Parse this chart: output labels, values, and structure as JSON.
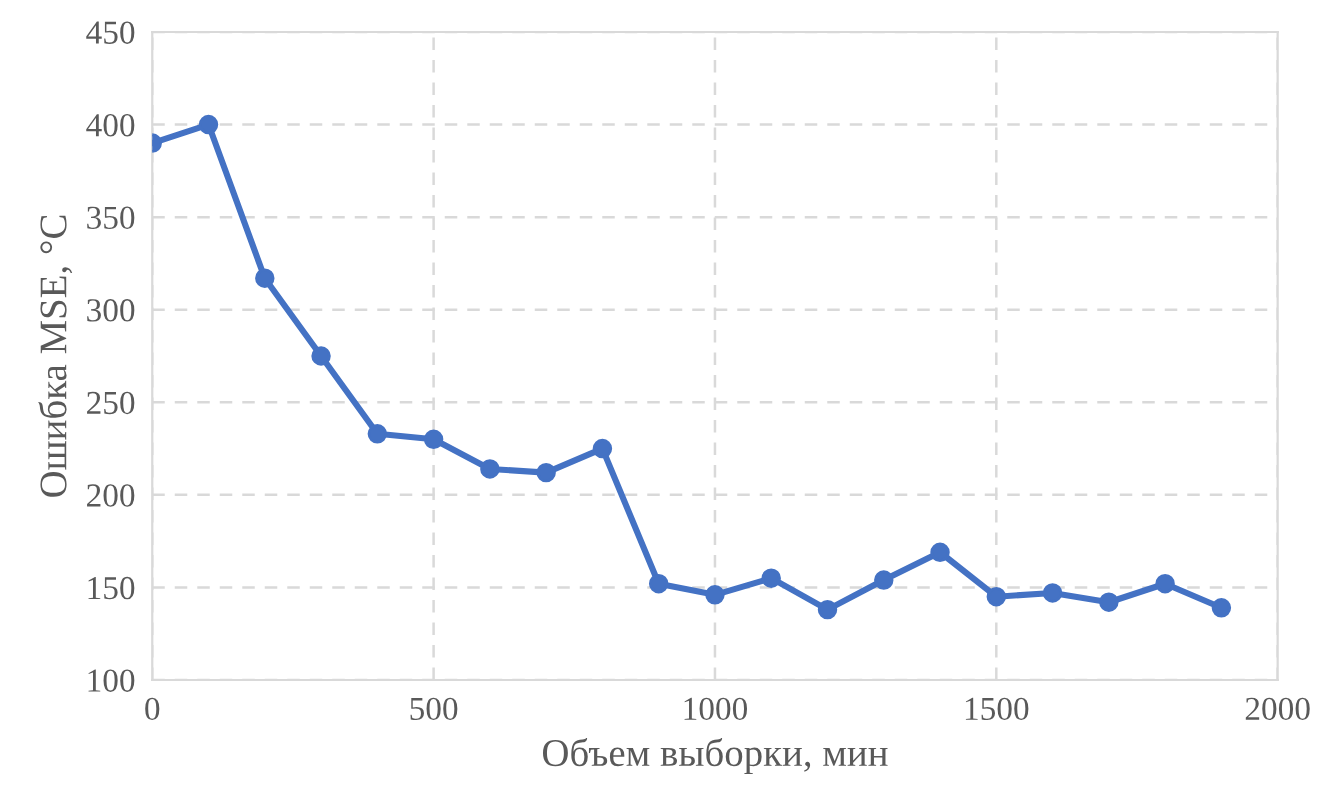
{
  "chart_data": {
    "type": "line",
    "xlabel": "Объем выборки, мин",
    "ylabel": "Ошибка MSE, °C",
    "x": [
      0,
      100,
      200,
      300,
      400,
      500,
      600,
      700,
      800,
      900,
      1000,
      1100,
      1200,
      1300,
      1400,
      1500,
      1600,
      1700,
      1800,
      1900
    ],
    "series": [
      {
        "color": "#4472c4",
        "values": [
          390,
          400,
          317,
          275,
          233,
          230,
          214,
          212,
          225,
          152,
          146,
          155,
          138,
          154,
          169,
          145,
          147,
          142,
          152,
          139
        ]
      }
    ],
    "xlim": [
      0,
      2000
    ],
    "xticks": [
      0,
      500,
      1000,
      1500,
      2000
    ],
    "ylim": [
      100,
      450
    ],
    "yticks": [
      100,
      150,
      200,
      250,
      300,
      350,
      400,
      450
    ],
    "grid": true,
    "marker": "circle",
    "line_style": "solid"
  }
}
